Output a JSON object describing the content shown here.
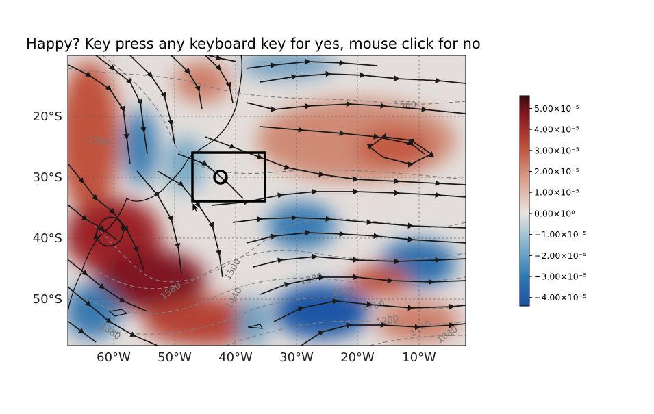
{
  "title": "Happy? Key press any keyboard key for yes, mouse click for no",
  "chart_data": {
    "type": "heatmap",
    "title": "Happy? Key press any keyboard key for yes, mouse click for no",
    "x_ticks": [
      "60°W",
      "50°W",
      "40°W",
      "30°W",
      "20°W",
      "10°W"
    ],
    "x_tick_values": [
      -60,
      -50,
      -40,
      -30,
      -20,
      -10
    ],
    "y_ticks": [
      "20°S",
      "30°S",
      "40°S",
      "50°S"
    ],
    "y_tick_values": [
      -20,
      -30,
      -40,
      -50
    ],
    "xlim": [
      -67.5,
      -2.5
    ],
    "ylim": [
      -57.5,
      -10
    ],
    "grid": true,
    "colorbar": {
      "ticks": [
        "5.00×10⁻⁵",
        "4.00×10⁻⁵",
        "3.00×10⁻⁵",
        "2.00×10⁻⁵",
        "1.00×10⁻⁵",
        "0.00×10⁰",
        "−1.00×10⁻⁵",
        "−2.00×10⁻⁵",
        "−3.00×10⁻⁵",
        "−4.00×10⁻⁵"
      ],
      "tick_values": [
        5e-05,
        4e-05,
        3e-05,
        2e-05,
        1e-05,
        0,
        -1e-05,
        -2e-05,
        -3e-05,
        -4e-05
      ],
      "range": [
        -4.4e-05,
        5.6e-05
      ],
      "colors": [
        "#1f4fa3",
        "#2f7ab5",
        "#8ab6cc",
        "#e8e4e0",
        "#d9a08c",
        "#c0533e",
        "#8f1a22",
        "#3b0a10"
      ]
    },
    "contour_labels": [
      "1560",
      "1560",
      "1560",
      "1500",
      "1440",
      "1380",
      "1380",
      "1320",
      "1260",
      "1200",
      "1140",
      "1080",
      "1380",
      "1500"
    ],
    "box": {
      "lon": [
        -47,
        -35
      ],
      "lat": [
        -26,
        -34
      ]
    },
    "circle": {
      "lon": -42.5,
      "lat": -30
    }
  }
}
